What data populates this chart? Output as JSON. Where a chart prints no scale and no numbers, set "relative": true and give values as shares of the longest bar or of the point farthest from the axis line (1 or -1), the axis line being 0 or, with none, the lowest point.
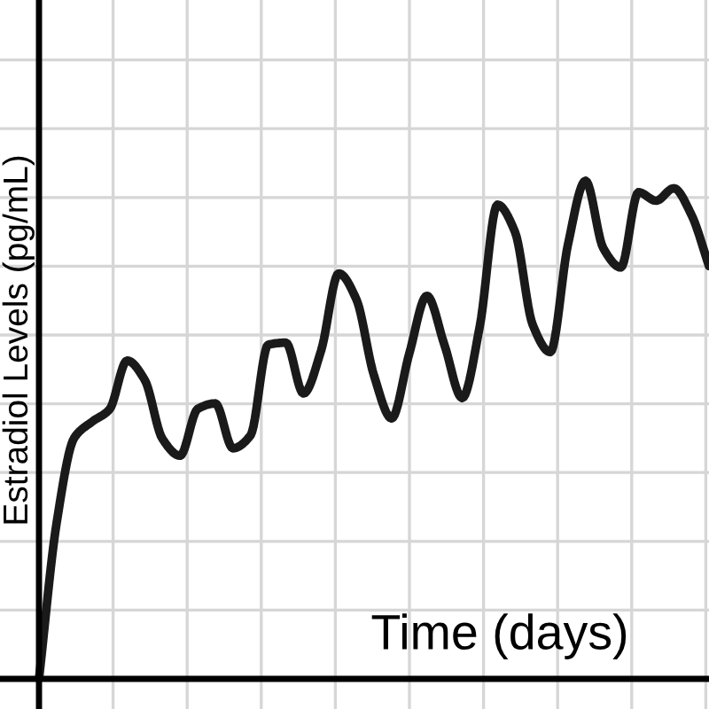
{
  "chart_data": {
    "type": "line",
    "relative": true,
    "xlabel": "Time (days)",
    "ylabel": "Estradiol Levels (pg/mL)",
    "categories": [
      null,
      null,
      null,
      null,
      null,
      null,
      null,
      null,
      null,
      null,
      null,
      null,
      null,
      null,
      null,
      null,
      null,
      null,
      null,
      null,
      null,
      null,
      null,
      null,
      null,
      null,
      null,
      null,
      null,
      null,
      null,
      null,
      null,
      null,
      null,
      null,
      null,
      null,
      null
    ],
    "series": [
      {
        "color": "#1a1a1a",
        "values": [
          0,
          0.313,
          0.484,
          0.516,
          0.541,
          0.639,
          0.6,
          0.482,
          0.448,
          0.542,
          0.553,
          0.463,
          0.489,
          0.671,
          0.675,
          0.573,
          0.659,
          0.814,
          0.762,
          0.609,
          0.523,
          0.653,
          0.769,
          0.67,
          0.564,
          0.708,
          0.952,
          0.897,
          0.711,
          0.656,
          0.872,
          1.0,
          0.865,
          0.826,
          0.977,
          0.96,
          0.985,
          0.932,
          0.829
        ]
      }
    ],
    "grid": true,
    "tick_labels": false,
    "marker": "none",
    "line_style": "solid",
    "legend": false
  }
}
